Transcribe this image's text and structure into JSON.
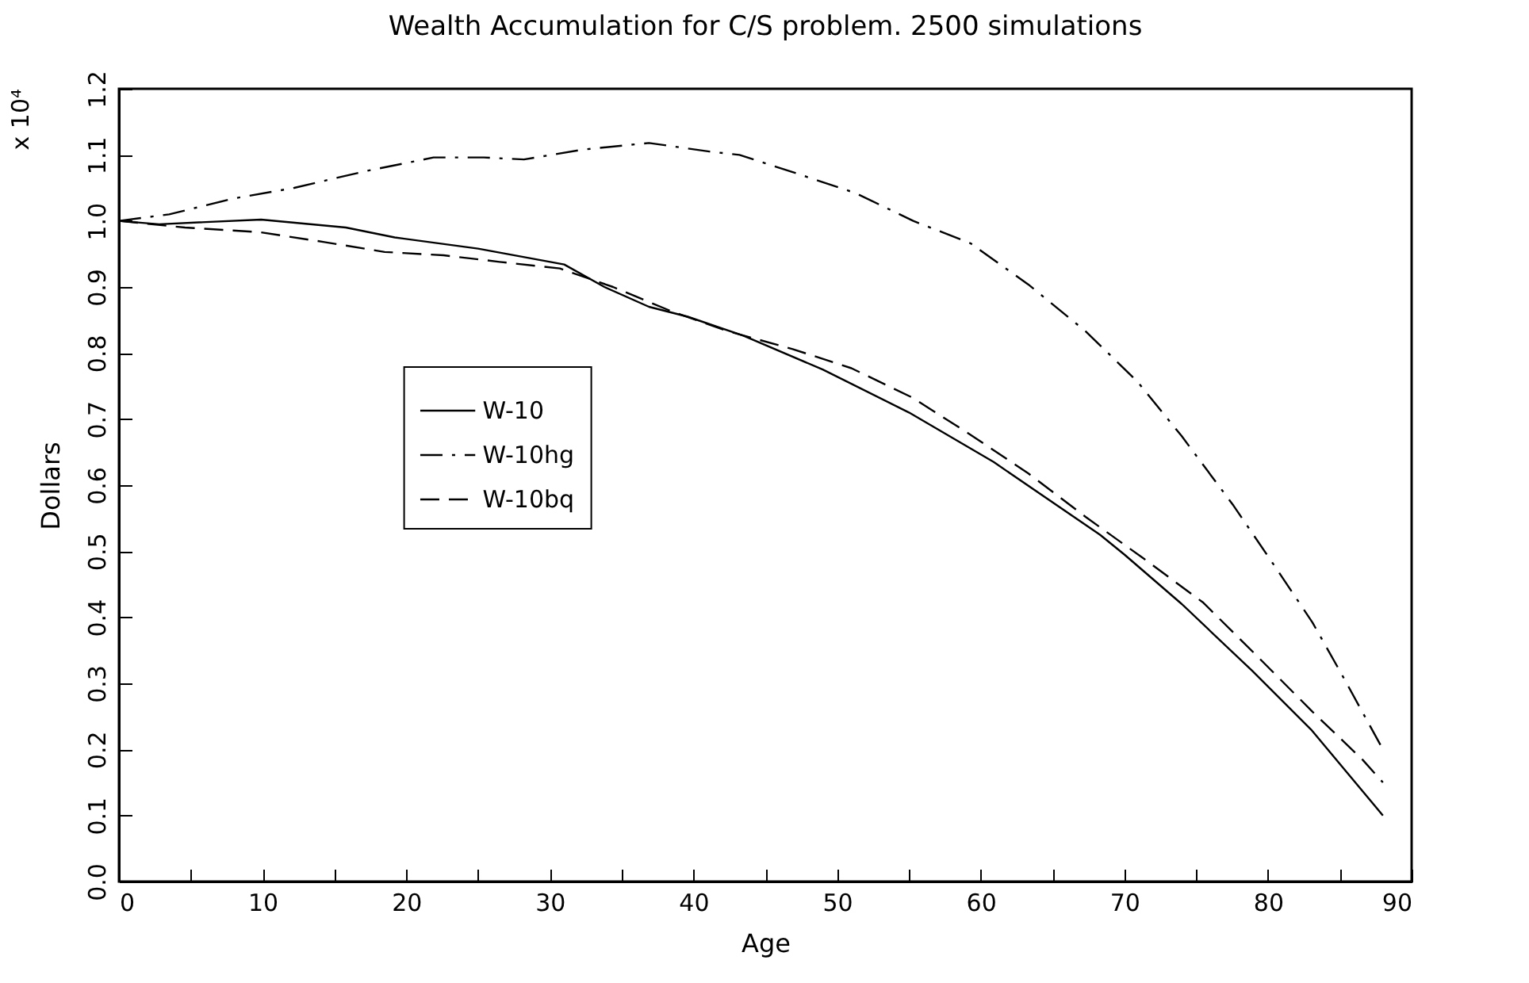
{
  "chart_data": {
    "type": "line",
    "title": "Wealth Accumulation for  C/S problem. 2500 simulations",
    "xlabel": "Age",
    "ylabel": "Dollars",
    "annotations": [
      "x 10⁴"
    ],
    "xlim": [
      0,
      90
    ],
    "xticks": [
      0,
      {
        "value": 5,
        "label": null
      },
      10,
      {
        "value": 15,
        "label": null
      },
      20,
      {
        "value": 25,
        "label": null
      },
      30,
      {
        "value": 35,
        "label": null
      },
      40,
      {
        "value": 45,
        "label": null
      },
      50,
      {
        "value": 55,
        "label": null
      },
      60,
      {
        "value": 65,
        "label": null
      },
      70,
      {
        "value": 75,
        "label": null
      },
      80,
      {
        "value": 85,
        "label": null
      },
      90
    ],
    "ylim": [
      0,
      1.2
    ],
    "yticks": [
      {
        "value": 0,
        "label": "0.0"
      },
      0.1,
      0.2,
      0.3,
      0.4,
      0.5,
      0.6,
      0.7,
      0.8,
      0.9,
      {
        "value": 1,
        "label": "1.0"
      },
      1.1,
      1.2
    ],
    "grid": false,
    "legend": "left",
    "marker": "none",
    "series": [
      {
        "name": "W-10",
        "color": "#000000",
        "line_style": "solid",
        "x": [
          0,
          2.8,
          9.9,
          15.8,
          19.2,
          25,
          31,
          33.8,
          36.9,
          39.6,
          43.5,
          49,
          55,
          60.9,
          68.3,
          70,
          74,
          78.9,
          83,
          88
        ],
        "values": [
          1.0,
          0.995,
          1.002,
          0.99,
          0.975,
          0.958,
          0.934,
          0.9,
          0.87,
          0.855,
          0.826,
          0.775,
          0.71,
          0.635,
          0.525,
          0.495,
          0.42,
          0.319,
          0.23,
          0.1
        ]
      },
      {
        "name": "W-10hg",
        "color": "#000000",
        "line_style": "dashdot",
        "x": [
          0,
          3.5,
          8,
          12.2,
          17.1,
          21.9,
          25.4,
          28.2,
          32.3,
          36.9,
          41.1,
          43.2,
          47.3,
          51.3,
          55.3,
          59.3,
          63.3,
          67.3,
          70.9,
          74,
          77.6,
          80.7,
          83.1,
          85.2,
          88
        ],
        "values": [
          1.0,
          1.01,
          1.034,
          1.05,
          1.075,
          1.096,
          1.096,
          1.093,
          1.108,
          1.118,
          1.105,
          1.1,
          1.071,
          1.042,
          1.0,
          0.966,
          0.904,
          0.833,
          0.757,
          0.674,
          0.569,
          0.47,
          0.392,
          0.311,
          0.2
        ]
      },
      {
        "name": "W-10bq",
        "color": "#000000",
        "line_style": "dashed",
        "x": [
          0,
          4.6,
          9.8,
          14.3,
          18.5,
          22.6,
          26.5,
          30.7,
          34.4,
          38.6,
          42.4,
          46.9,
          51,
          55.2,
          59.1,
          63.3,
          67.3,
          71.4,
          75.5,
          79.3,
          83.1,
          86.6,
          88
        ],
        "values": [
          1.0,
          0.99,
          0.983,
          0.968,
          0.953,
          0.948,
          0.938,
          0.928,
          0.9,
          0.862,
          0.833,
          0.806,
          0.777,
          0.733,
          0.679,
          0.618,
          0.552,
          0.488,
          0.422,
          0.34,
          0.257,
          0.184,
          0.15
        ]
      }
    ]
  }
}
